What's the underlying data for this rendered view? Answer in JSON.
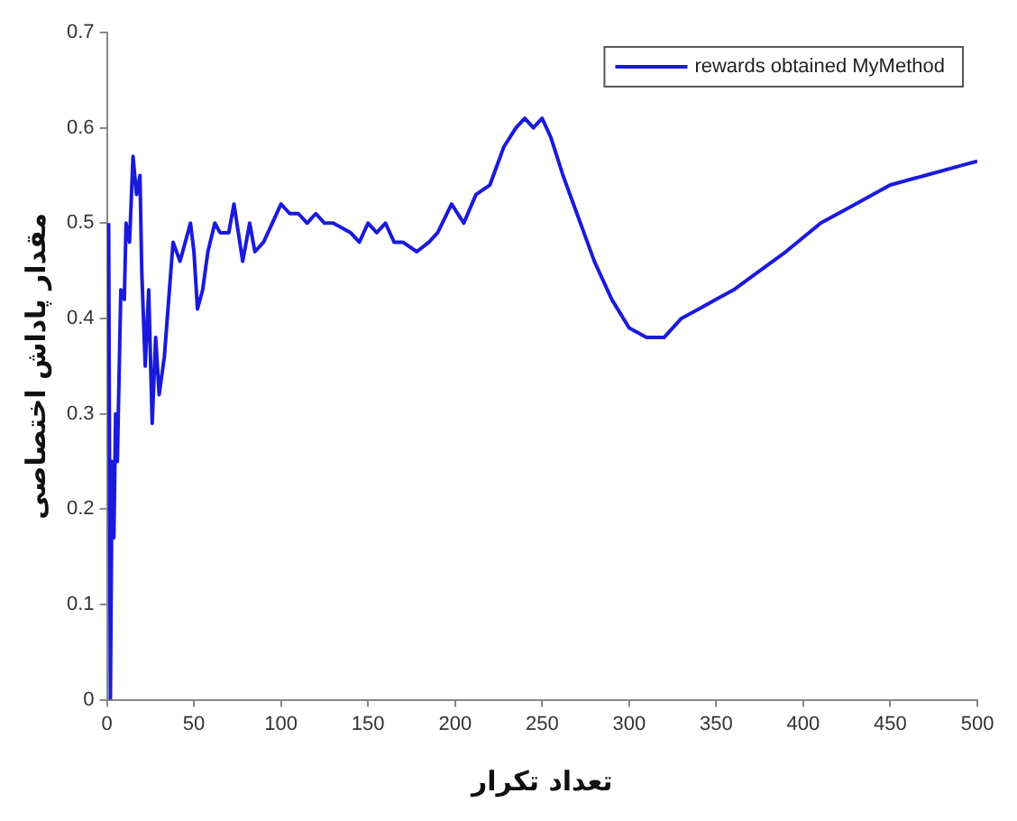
{
  "chart_data": {
    "type": "line",
    "xlabel": "تعداد تکرار",
    "ylabel": "مقدار پاداش اختصاصی",
    "xlim": [
      0,
      500
    ],
    "xticks": [
      0,
      50,
      100,
      150,
      200,
      250,
      300,
      350,
      400,
      450,
      500
    ],
    "ylim": [
      0,
      0.7
    ],
    "yticks": [
      0,
      0.1,
      0.2,
      0.3,
      0.4,
      0.5,
      0.6,
      0.7
    ],
    "grid": false,
    "legend": "top right",
    "marker": "none",
    "line_style": "solid",
    "series": [
      {
        "name": "rewards obtained MyMethod",
        "color": "#1a1adc",
        "x": [
          1,
          2,
          3,
          4,
          5,
          6,
          8,
          10,
          11,
          13,
          15,
          17,
          19,
          20,
          22,
          24,
          26,
          28,
          30,
          33,
          38,
          42,
          45,
          48,
          50,
          52,
          55,
          58,
          62,
          65,
          70,
          73,
          78,
          82,
          85,
          90,
          95,
          100,
          105,
          110,
          115,
          120,
          125,
          130,
          140,
          145,
          150,
          155,
          160,
          165,
          170,
          178,
          185,
          190,
          198,
          205,
          212,
          220,
          228,
          235,
          240,
          245,
          250,
          255,
          262,
          270,
          280,
          290,
          300,
          310,
          320,
          330,
          340,
          350,
          360,
          375,
          390,
          410,
          430,
          450,
          470,
          490,
          500
        ],
        "values": [
          0.5,
          0,
          0.25,
          0.17,
          0.3,
          0.25,
          0.43,
          0.42,
          0.5,
          0.48,
          0.57,
          0.53,
          0.55,
          0.45,
          0.35,
          0.43,
          0.29,
          0.38,
          0.32,
          0.36,
          0.48,
          0.46,
          0.48,
          0.5,
          0.47,
          0.41,
          0.43,
          0.47,
          0.5,
          0.49,
          0.49,
          0.52,
          0.46,
          0.5,
          0.47,
          0.48,
          0.5,
          0.52,
          0.51,
          0.51,
          0.5,
          0.51,
          0.5,
          0.5,
          0.49,
          0.48,
          0.5,
          0.49,
          0.5,
          0.48,
          0.48,
          0.47,
          0.48,
          0.49,
          0.52,
          0.5,
          0.53,
          0.54,
          0.58,
          0.6,
          0.61,
          0.6,
          0.61,
          0.59,
          0.55,
          0.51,
          0.46,
          0.42,
          0.39,
          0.38,
          0.38,
          0.4,
          0.41,
          0.42,
          0.43,
          0.45,
          0.47,
          0.5,
          0.52,
          0.54,
          0.55,
          0.56,
          0.565
        ]
      }
    ]
  }
}
